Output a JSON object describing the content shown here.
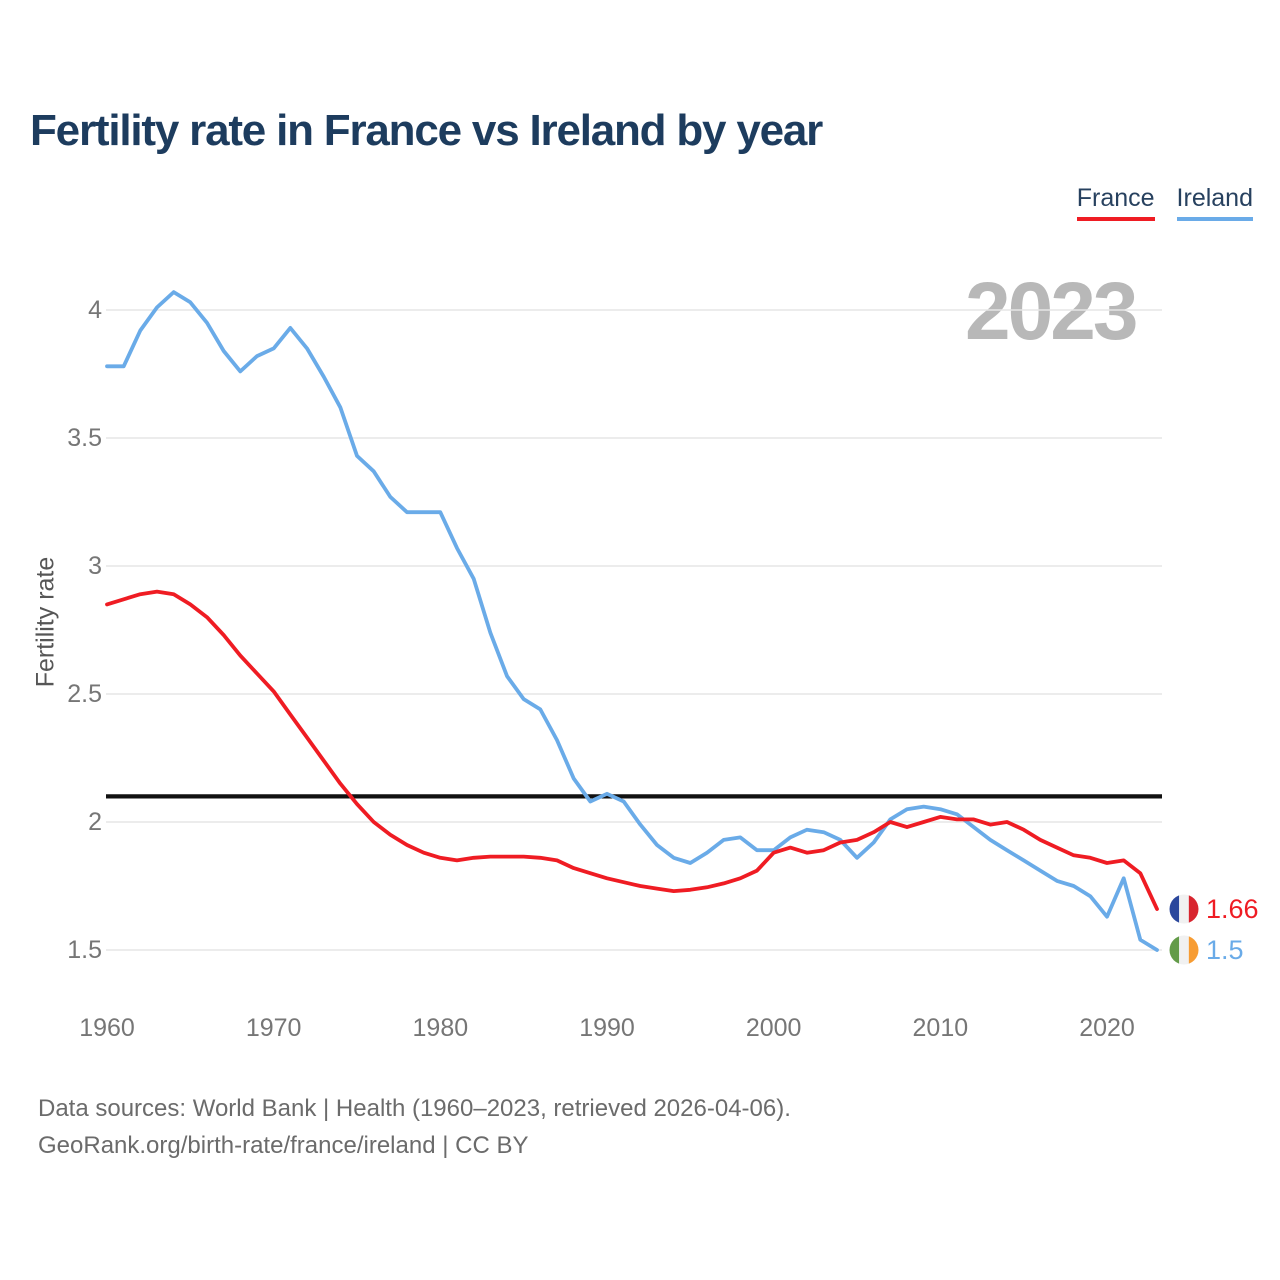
{
  "chart_data": {
    "type": "line",
    "title": "Fertility rate in France vs Ireland by year",
    "ylabel": "Fertility rate",
    "watermark": "2023",
    "x_start": 1960,
    "x_end": 2023,
    "x_ticks": [
      "1960",
      "1970",
      "1980",
      "1990",
      "2000",
      "2010",
      "2020"
    ],
    "y_ticks": [
      "4",
      "3.5",
      "3",
      "2.5",
      "2",
      "1.5"
    ],
    "ylim": [
      1.4,
      4.15
    ],
    "grid": true,
    "grid_color": "#e6e6e6",
    "legend_position": "top-right",
    "replacement_level": {
      "value": 2.1,
      "color": "#111111"
    },
    "series": [
      {
        "name": "France",
        "color": "#ef1c23",
        "z": 2,
        "end_label": "1.66",
        "flag_icon": "france-flag",
        "flag_colors": [
          "#2b479c",
          "#f1f1f1",
          "#d8252f"
        ],
        "values": [
          2.85,
          2.87,
          2.89,
          2.9,
          2.89,
          2.85,
          2.8,
          2.73,
          2.65,
          2.58,
          2.51,
          2.42,
          2.33,
          2.24,
          2.15,
          2.07,
          2.0,
          1.95,
          1.91,
          1.88,
          1.86,
          1.85,
          1.86,
          1.865,
          1.865,
          1.865,
          1.86,
          1.85,
          1.82,
          1.8,
          1.78,
          1.765,
          1.75,
          1.74,
          1.73,
          1.735,
          1.745,
          1.76,
          1.78,
          1.81,
          1.88,
          1.9,
          1.88,
          1.89,
          1.92,
          1.93,
          1.96,
          2.0,
          1.98,
          2.0,
          2.02,
          2.01,
          2.01,
          1.99,
          2.0,
          1.97,
          1.93,
          1.9,
          1.87,
          1.86,
          1.84,
          1.85,
          1.8,
          1.66
        ]
      },
      {
        "name": "Ireland",
        "color": "#6aabe8",
        "z": 1,
        "end_label": "1.5",
        "flag_icon": "ireland-flag",
        "flag_colors": [
          "#639b49",
          "#f1f1f1",
          "#f79c33"
        ],
        "values": [
          3.78,
          3.78,
          3.92,
          4.01,
          4.07,
          4.03,
          3.95,
          3.84,
          3.76,
          3.82,
          3.85,
          3.93,
          3.85,
          3.74,
          3.62,
          3.43,
          3.37,
          3.27,
          3.21,
          3.21,
          3.21,
          3.07,
          2.95,
          2.74,
          2.57,
          2.48,
          2.44,
          2.32,
          2.17,
          2.08,
          2.11,
          2.08,
          1.99,
          1.91,
          1.86,
          1.84,
          1.88,
          1.93,
          1.94,
          1.89,
          1.89,
          1.94,
          1.97,
          1.96,
          1.93,
          1.86,
          1.92,
          2.01,
          2.05,
          2.06,
          2.05,
          2.03,
          1.98,
          1.93,
          1.89,
          1.85,
          1.81,
          1.77,
          1.75,
          1.71,
          1.63,
          1.78,
          1.54,
          1.5
        ]
      }
    ]
  },
  "footer": {
    "line1": "Data sources: World Bank | Health (1960–2023, retrieved 2026-04-06).",
    "line2": "GeoRank.org/birth-rate/france/ireland | CC BY"
  }
}
